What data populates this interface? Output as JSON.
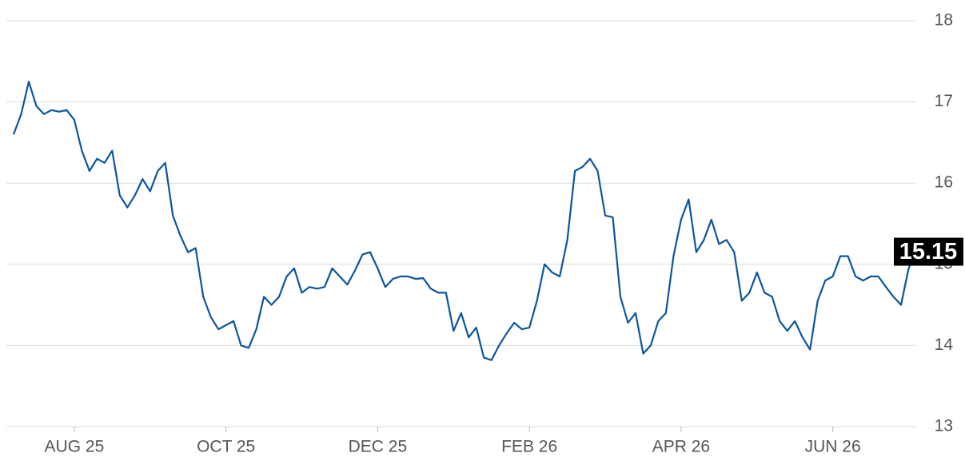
{
  "chart_data": {
    "type": "line",
    "categories": [
      null,
      null,
      null,
      null,
      null,
      null,
      null,
      null,
      "AUG 25",
      null,
      null,
      null,
      null,
      null,
      null,
      null,
      null,
      null,
      null,
      null,
      null,
      null,
      null,
      null,
      null,
      null,
      null,
      null,
      "OCT 25",
      null,
      null,
      null,
      null,
      null,
      null,
      null,
      null,
      null,
      null,
      null,
      null,
      null,
      null,
      null,
      null,
      null,
      null,
      null,
      "DEC 25",
      null,
      null,
      null,
      null,
      null,
      null,
      null,
      null,
      null,
      null,
      null,
      null,
      null,
      null,
      null,
      null,
      null,
      null,
      null,
      "FEB 26",
      null,
      null,
      null,
      null,
      null,
      null,
      null,
      null,
      null,
      null,
      null,
      null,
      null,
      null,
      null,
      null,
      null,
      null,
      null,
      "APR 26",
      null,
      null,
      null,
      null,
      null,
      null,
      null,
      null,
      null,
      null,
      null,
      null,
      null,
      null,
      null,
      null,
      null,
      null,
      null,
      "JUN 26",
      null,
      null,
      null,
      null,
      null,
      null,
      null,
      null,
      null,
      null,
      null
    ],
    "values": [
      16.6,
      16.85,
      17.25,
      16.95,
      16.85,
      16.9,
      16.88,
      16.9,
      16.78,
      16.4,
      16.15,
      16.3,
      16.25,
      16.4,
      15.85,
      15.7,
      15.85,
      16.05,
      15.9,
      16.15,
      16.25,
      15.6,
      15.35,
      15.15,
      15.2,
      14.6,
      14.35,
      14.2,
      14.25,
      14.3,
      14.0,
      13.97,
      14.2,
      14.6,
      14.5,
      14.6,
      14.85,
      14.95,
      14.65,
      14.72,
      14.7,
      14.72,
      14.95,
      14.85,
      14.75,
      14.92,
      15.12,
      15.15,
      14.95,
      14.72,
      14.82,
      14.85,
      14.85,
      14.82,
      14.83,
      14.7,
      14.65,
      14.65,
      14.18,
      14.4,
      14.1,
      14.22,
      13.85,
      13.82,
      14.0,
      14.15,
      14.28,
      14.2,
      14.22,
      14.55,
      15.0,
      14.9,
      14.85,
      15.3,
      16.15,
      16.2,
      16.3,
      16.15,
      15.6,
      15.58,
      14.6,
      14.28,
      14.4,
      13.9,
      14.0,
      14.3,
      14.4,
      15.1,
      15.55,
      15.8,
      15.15,
      15.3,
      15.55,
      15.25,
      15.3,
      15.15,
      14.55,
      14.65,
      14.9,
      14.65,
      14.6,
      14.3,
      14.18,
      14.3,
      14.1,
      13.95,
      14.55,
      14.8,
      14.85,
      15.1,
      15.1,
      14.85,
      14.8,
      14.85,
      14.85,
      14.72,
      14.6,
      14.5,
      14.95,
      15.15
    ],
    "color": "#0b55a0",
    "ylim": [
      13,
      18
    ],
    "yticks": [
      13,
      14,
      15,
      16,
      17,
      18
    ],
    "grid": true
  }
}
